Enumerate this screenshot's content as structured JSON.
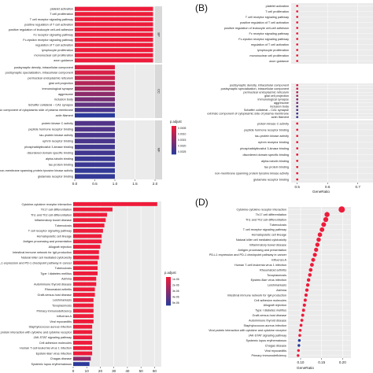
{
  "colors": {
    "high": "#ee1b3a",
    "low": "#2b3a9a",
    "strip": "#d9d9d9",
    "panel_bg": "#ebebeb",
    "grid": "#ffffff"
  },
  "chart_data": [
    {
      "panel": "",
      "type": "bar",
      "orientation": "horizontal",
      "facet_strip_labels": [
        "BP",
        "CC",
        "MF"
      ],
      "groups": [
        {
          "strip": "BP",
          "categories": [
            "platelet activation",
            "T cell proliferation",
            "T cell receptor signaling pathway",
            "positive regulation of T cell activation",
            "positive regulation of leukocyte cell-cell adhesion",
            "Fc receptor signaling pathway",
            "Fc-epsilon receptor signaling pathway",
            "regulation of T cell activation",
            "lymphocyte proliferation",
            "mononuclear cell proliferation",
            "axon guidance"
          ],
          "values": [
            1.95,
            1.95,
            1.95,
            1.95,
            1.95,
            1.95,
            1.95,
            1.95,
            1.95,
            1.95,
            1.95
          ],
          "padjust": [
            0.0,
            0.0,
            0.0,
            0.0,
            0.0,
            0.0,
            0.0,
            0.0,
            0.0,
            0.0,
            0.0
          ]
        },
        {
          "strip": "CC",
          "categories": [
            "postsynaptic density, intracellular component",
            "postsynaptic specialization, intracellular component",
            "perinuclear endoplasmic reticulum",
            "glial cell projection",
            "immunological synapse",
            "aggresome",
            "inclusion body",
            "Schaffer collateral – CA1 synapse",
            "extrinsic component of cytoplasmic side of plasma membrane",
            "actin filament"
          ],
          "values": [
            1.0,
            1.0,
            1.0,
            1.0,
            1.0,
            1.0,
            1.0,
            1.0,
            1.0,
            1.0
          ],
          "padjust": [
            0.0002,
            0.0003,
            0.0005,
            0.0008,
            0.001,
            0.0013,
            0.0016,
            0.0019,
            0.0022,
            0.0026
          ]
        },
        {
          "strip": "MF",
          "categories": [
            "protein kinase C activity",
            "peptide hormone receptor binding",
            "tau-protein kinase activity",
            "ephrin receptor binding",
            "phosphatidylinositol 3-kinase binding",
            "disordered domain specific binding",
            "alpha-tubulin binding",
            "tau protein binding",
            "non-membrane spanning protein tyrosine kinase activity",
            "glutamate receptor binding"
          ],
          "values": [
            1.0,
            1.0,
            1.0,
            1.0,
            1.0,
            1.0,
            1.0,
            1.0,
            1.0,
            1.0
          ],
          "padjust": [
            0.0021,
            0.0021,
            0.0022,
            0.0022,
            0.0023,
            0.0023,
            0.0024,
            0.0024,
            0.0025,
            0.0025
          ]
        }
      ],
      "xlim": [
        0,
        2
      ],
      "xticks": [
        "0.0",
        "0.5",
        "1.0",
        "1.5",
        "2.0"
      ],
      "legend_title": "p.adjust",
      "legend_ticks": [
        "0.0005",
        "0.0010",
        "0.0015",
        "0.0020",
        "0.0025"
      ],
      "legend_position": "right"
    },
    {
      "panel": "(B)",
      "type": "scatter",
      "facet_strip_labels": [
        "",
        "",
        ""
      ],
      "groups": [
        {
          "categories": [
            "platelet activation",
            "T cell proliferation",
            "T cell receptor signaling pathway",
            "positive regulation of T cell activation",
            "positive regulation of leukocyte cell-cell adhesion",
            "Fc receptor signaling pathway",
            "Fc-epsilon receptor signaling pathway",
            "regulation of T cell activation",
            "lymphocyte proliferation",
            "mononuclear cell proliferation",
            "axon guidance"
          ],
          "values": [
            0.5,
            0.5,
            0.5,
            0.5,
            0.5,
            0.5,
            0.5,
            0.5,
            0.5,
            0.5,
            0.5
          ]
        },
        {
          "categories": [
            "postsynaptic density, intracellular component",
            "postsynaptic specialization, intracellular component",
            "perinuclear endoplasmic reticulum",
            "glial cell projection",
            "immunological synapse",
            "aggresome",
            "inclusion body",
            "Schaffer collateral – CA1 synapse",
            "extrinsic component of cytoplasmic side of plasma membrane",
            "actin filament"
          ],
          "values": [
            0.5,
            0.5,
            0.5,
            0.5,
            0.5,
            0.5,
            0.5,
            0.5,
            0.5,
            0.5
          ],
          "padjust": [
            0.0002,
            0.0005,
            0.0008,
            0.0011,
            0.0014,
            0.0016,
            0.0019,
            0.0021,
            0.0023,
            0.0025
          ]
        },
        {
          "categories": [
            "protein kinase C activity",
            "peptide hormone receptor binding",
            "tau-protein kinase activity",
            "ephrin receptor binding",
            "phosphatidylinositol 3-kinase binding",
            "disordered domain specific binding",
            "alpha-tubulin binding",
            "tau protein binding",
            "non-membrane spanning protein tyrosine kinase activity",
            "glutamate receptor binding"
          ],
          "values": [
            0.5,
            0.5,
            0.5,
            0.5,
            0.5,
            0.5,
            0.5,
            0.5,
            0.5,
            0.5
          ]
        }
      ],
      "xlim": [
        0.48,
        0.75
      ],
      "xticks": [
        "0.5",
        "0.6",
        "0.7"
      ],
      "xlabel": "GeneRatio"
    },
    {
      "panel": "",
      "type": "bar",
      "orientation": "horizontal",
      "categories": [
        "Cytokine-cytokine receptor interaction",
        "Th17 cell differentiation",
        "Th1 and Th2 cell differentiation",
        "Inflammatory bowel disease",
        "Tuberculosis",
        "T cell receptor signaling pathway",
        "Hematopoietic cell lineage",
        "Antigen processing and presentation",
        "Allograft rejection",
        "Intestinal immune network for IgA production",
        "Natural killer cell mediated cytotoxicity",
        "PD-L1 expression and PD-1 checkpoint pathway in cancer",
        "Tuberculosis",
        "Type I diabetes mellitus",
        "Asthma",
        "Autoimmune thyroid disease",
        "Rheumatoid arthritis",
        "Graft-versus-host disease",
        "Leishmaniasis",
        "Toxoplasmosis",
        "Primary immunodeficiency",
        "Influenza A",
        "Viral myocarditis",
        "Staphylococcus aureus infection",
        "Viral protein interaction with cytokine and cytokine receptor",
        "JAK-STAT signaling pathway",
        "Cell adhesion molecules",
        "Human T-cell leukemia virus 1 infection",
        "Epstein-Barr virus infection",
        "Chagas disease",
        "Systemic lupus erythematosus"
      ],
      "values": [
        62,
        29,
        25,
        24,
        23,
        22,
        21,
        21,
        20,
        19,
        19,
        18,
        18,
        18,
        17,
        17,
        16,
        16,
        15,
        15,
        15,
        15,
        15,
        14,
        14,
        14,
        14,
        14,
        14,
        13,
        12
      ],
      "padjust": [
        0,
        0,
        0,
        0,
        0,
        0,
        0,
        0,
        0,
        0,
        0,
        0,
        0,
        0,
        0,
        0,
        0,
        0,
        0,
        0,
        0,
        0,
        0,
        0,
        0,
        0,
        0,
        0,
        0,
        4e-05,
        8e-05
      ],
      "xlim": [
        0,
        65
      ],
      "xticks": [
        "0",
        "10",
        "20",
        "30",
        "40",
        "50",
        "60"
      ],
      "legend_title": "p.adjust",
      "legend_ticks": [
        "1e-06",
        "2e-06",
        "3e-06",
        "4e-06",
        "5e-06"
      ],
      "legend_position": "right"
    },
    {
      "panel": "(D)",
      "type": "scatter",
      "categories": [
        "Cytokine-cytokine receptor interaction",
        "Th17 cell differentiation",
        "Th1 and Th2 cell differentiation",
        "Tuberculosis",
        "T cell receptor signaling pathway",
        "Hematopoietic cell lineage",
        "Natural killer cell mediated cytotoxicity",
        "Inflammatory bowel disease",
        "Antigen processing and presentation",
        "PD-L1 expression and PD-1 checkpoint pathway in cancer",
        "Influenza A",
        "Human T-cell leukemia virus 1 infection",
        "Rheumatoid arthritis",
        "Toxoplasmosis",
        "Epstein-Barr virus infection",
        "Leishmaniasis",
        "Asthma",
        "Intestinal immune network for IgA production",
        "Cell adhesion molecules",
        "Allograft rejection",
        "Type I diabetes mellitus",
        "Graft-versus-host disease",
        "Autoimmune thyroid disease",
        "Staphylococcus aureus infection",
        "Viral protein interaction with cytokine and cytokine receptor",
        "JAK-STAT signaling pathway",
        "Systemic lupus erythematosus",
        "Chagas disease",
        "Viral myocarditis",
        "Primary immunodeficiency"
      ],
      "values": [
        0.198,
        0.163,
        0.16,
        0.155,
        0.151,
        0.146,
        0.143,
        0.14,
        0.137,
        0.134,
        0.13,
        0.127,
        0.124,
        0.122,
        0.119,
        0.117,
        0.115,
        0.113,
        0.111,
        0.109,
        0.107,
        0.105,
        0.103,
        0.101,
        0.099,
        0.098,
        0.097,
        0.096,
        0.095,
        0.094
      ],
      "blue_points": [
        26,
        27
      ],
      "xlim": [
        0.07,
        0.22
      ],
      "xticks": [
        "0.10",
        "0.15",
        "0.20"
      ],
      "xlabel": "GeneRatio"
    }
  ]
}
